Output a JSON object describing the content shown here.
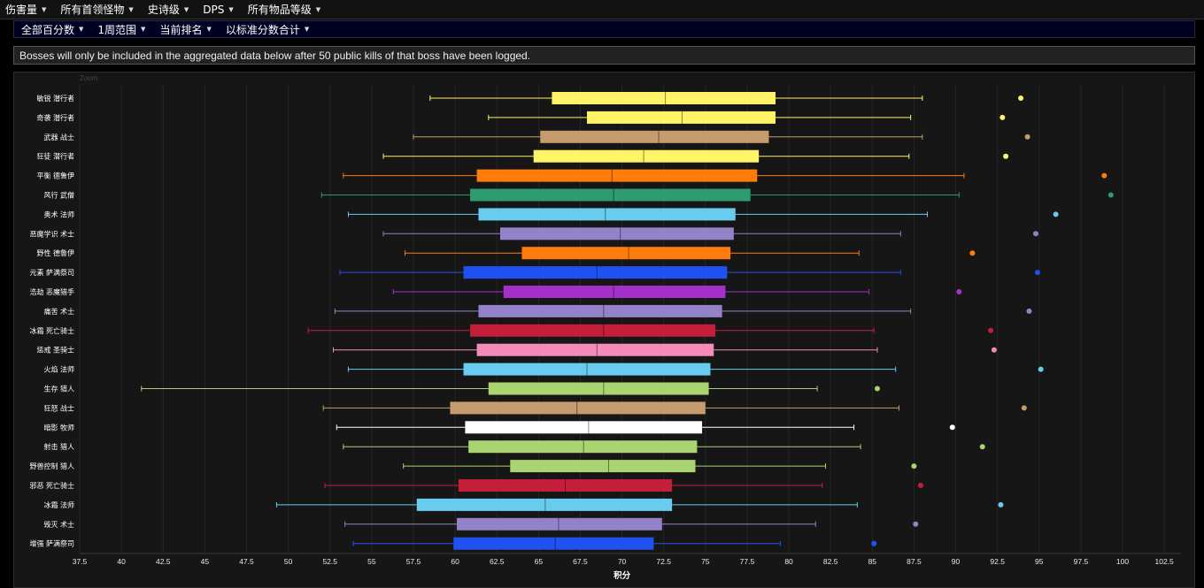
{
  "top_menu": {
    "items": [
      {
        "label": "伤害量"
      },
      {
        "label": "所有首领怪物"
      },
      {
        "label": "史诗级"
      },
      {
        "label": "DPS"
      },
      {
        "label": "所有物品等级"
      }
    ]
  },
  "sub_menu": {
    "items": [
      {
        "label": "全部百分数"
      },
      {
        "label": "1周范围"
      },
      {
        "label": "当前排名"
      },
      {
        "label": "以标准分数合计"
      }
    ]
  },
  "notice": {
    "text": "Bosses will only be included in the aggregated data below after 50 public kills of that boss have been logged."
  },
  "zoom_label": "Zoom",
  "chart_data": {
    "type": "boxplot",
    "orientation": "horizontal",
    "xlabel": "积分",
    "xlim": [
      37.5,
      103.5
    ],
    "xticks": [
      37.5,
      40,
      42.5,
      45,
      47.5,
      50,
      52.5,
      55,
      57.5,
      60,
      62.5,
      65,
      67.5,
      70,
      72.5,
      75,
      77.5,
      80,
      82.5,
      85,
      87.5,
      90,
      92.5,
      95,
      97.5,
      100,
      102.5
    ],
    "grid": true,
    "series": [
      {
        "name": "敏锐 潜行者",
        "color": "#fff468",
        "min": 58.5,
        "q1": 65.8,
        "median": 72.6,
        "q3": 79.2,
        "max": 88.0,
        "outlier": 93.9
      },
      {
        "name": "奇袭 潜行者",
        "color": "#fff468",
        "min": 62.0,
        "q1": 67.9,
        "median": 73.6,
        "q3": 79.2,
        "max": 87.3,
        "outlier": 92.8
      },
      {
        "name": "武器 战士",
        "color": "#c69b6d",
        "min": 57.5,
        "q1": 65.1,
        "median": 72.2,
        "q3": 78.8,
        "max": 88.0,
        "outlier": 94.3
      },
      {
        "name": "狂徒 潜行者",
        "color": "#fff468",
        "min": 55.7,
        "q1": 64.7,
        "median": 71.3,
        "q3": 78.2,
        "max": 87.2,
        "outlier": 93.0
      },
      {
        "name": "平衡 德鲁伊",
        "color": "#ff7c0a",
        "min": 53.3,
        "q1": 61.3,
        "median": 69.4,
        "q3": 78.1,
        "max": 90.5,
        "outlier": 98.9
      },
      {
        "name": "风行 武僧",
        "color": "#2e9b70",
        "min": 52.0,
        "q1": 60.9,
        "median": 69.5,
        "q3": 77.7,
        "max": 90.2,
        "outlier": 99.3
      },
      {
        "name": "奥术 法师",
        "color": "#68ccef",
        "min": 53.6,
        "q1": 61.4,
        "median": 69.0,
        "q3": 76.8,
        "max": 88.3,
        "outlier": 96.0
      },
      {
        "name": "恶魔学识 术士",
        "color": "#9482c9",
        "min": 55.7,
        "q1": 62.7,
        "median": 69.9,
        "q3": 76.7,
        "max": 86.7,
        "outlier": 94.8
      },
      {
        "name": "野性 德鲁伊",
        "color": "#ff7c0a",
        "min": 57.0,
        "q1": 64.0,
        "median": 70.4,
        "q3": 76.5,
        "max": 84.2,
        "outlier": 91.0
      },
      {
        "name": "元素 萨满祭司",
        "color": "#1f52f0",
        "min": 53.1,
        "q1": 60.5,
        "median": 68.5,
        "q3": 76.3,
        "max": 86.7,
        "outlier": 94.9
      },
      {
        "name": "浩劫 恶魔猎手",
        "color": "#a330c9",
        "min": 56.3,
        "q1": 62.9,
        "median": 69.5,
        "q3": 76.2,
        "max": 84.8,
        "outlier": 90.2
      },
      {
        "name": "痛苦 术士",
        "color": "#9482c9",
        "min": 52.8,
        "q1": 61.4,
        "median": 68.9,
        "q3": 76.0,
        "max": 87.3,
        "outlier": 94.4
      },
      {
        "name": "冰霜 死亡骑士",
        "color": "#c41e3a",
        "min": 51.2,
        "q1": 60.9,
        "median": 68.9,
        "q3": 75.6,
        "max": 85.1,
        "outlier": 92.1
      },
      {
        "name": "惩戒 圣骑士",
        "color": "#f48cba",
        "min": 52.7,
        "q1": 61.3,
        "median": 68.5,
        "q3": 75.5,
        "max": 85.3,
        "outlier": 92.3
      },
      {
        "name": "火焰 法师",
        "color": "#68ccef",
        "min": 53.6,
        "q1": 60.5,
        "median": 67.9,
        "q3": 75.3,
        "max": 86.4,
        "outlier": 95.1
      },
      {
        "name": "生存 猎人",
        "color": "#aad372",
        "min": 41.2,
        "q1": 62.0,
        "median": 68.9,
        "q3": 75.2,
        "max": 81.7,
        "outlier": 85.3
      },
      {
        "name": "狂怒 战士",
        "color": "#c69b6d",
        "min": 52.1,
        "q1": 59.7,
        "median": 67.3,
        "q3": 75.0,
        "max": 86.6,
        "outlier": 94.1
      },
      {
        "name": "暗影 牧师",
        "color": "#ffffff",
        "min": 52.9,
        "q1": 60.6,
        "median": 68.0,
        "q3": 74.8,
        "max": 83.9,
        "outlier": 89.8
      },
      {
        "name": "射击 猎人",
        "color": "#aad372",
        "min": 53.3,
        "q1": 60.8,
        "median": 67.7,
        "q3": 74.5,
        "max": 84.3,
        "outlier": 91.6
      },
      {
        "name": "野兽控制 猎人",
        "color": "#aad372",
        "min": 56.9,
        "q1": 63.3,
        "median": 69.2,
        "q3": 74.4,
        "max": 82.2,
        "outlier": 87.5
      },
      {
        "name": "邪恶 死亡骑士",
        "color": "#c41e3a",
        "min": 52.2,
        "q1": 60.2,
        "median": 66.6,
        "q3": 73.0,
        "max": 82.0,
        "outlier": 87.9
      },
      {
        "name": "冰霜 法师",
        "color": "#68ccef",
        "min": 49.3,
        "q1": 57.7,
        "median": 65.4,
        "q3": 73.0,
        "max": 84.1,
        "outlier": 92.7
      },
      {
        "name": "毁灭 术士",
        "color": "#9482c9",
        "min": 53.4,
        "q1": 60.1,
        "median": 66.2,
        "q3": 72.4,
        "max": 81.6,
        "outlier": 87.6
      },
      {
        "name": "增强 萨满祭司",
        "color": "#1f52f0",
        "min": 53.9,
        "q1": 59.9,
        "median": 66.0,
        "q3": 71.9,
        "max": 79.5,
        "outlier": 85.1
      }
    ]
  }
}
